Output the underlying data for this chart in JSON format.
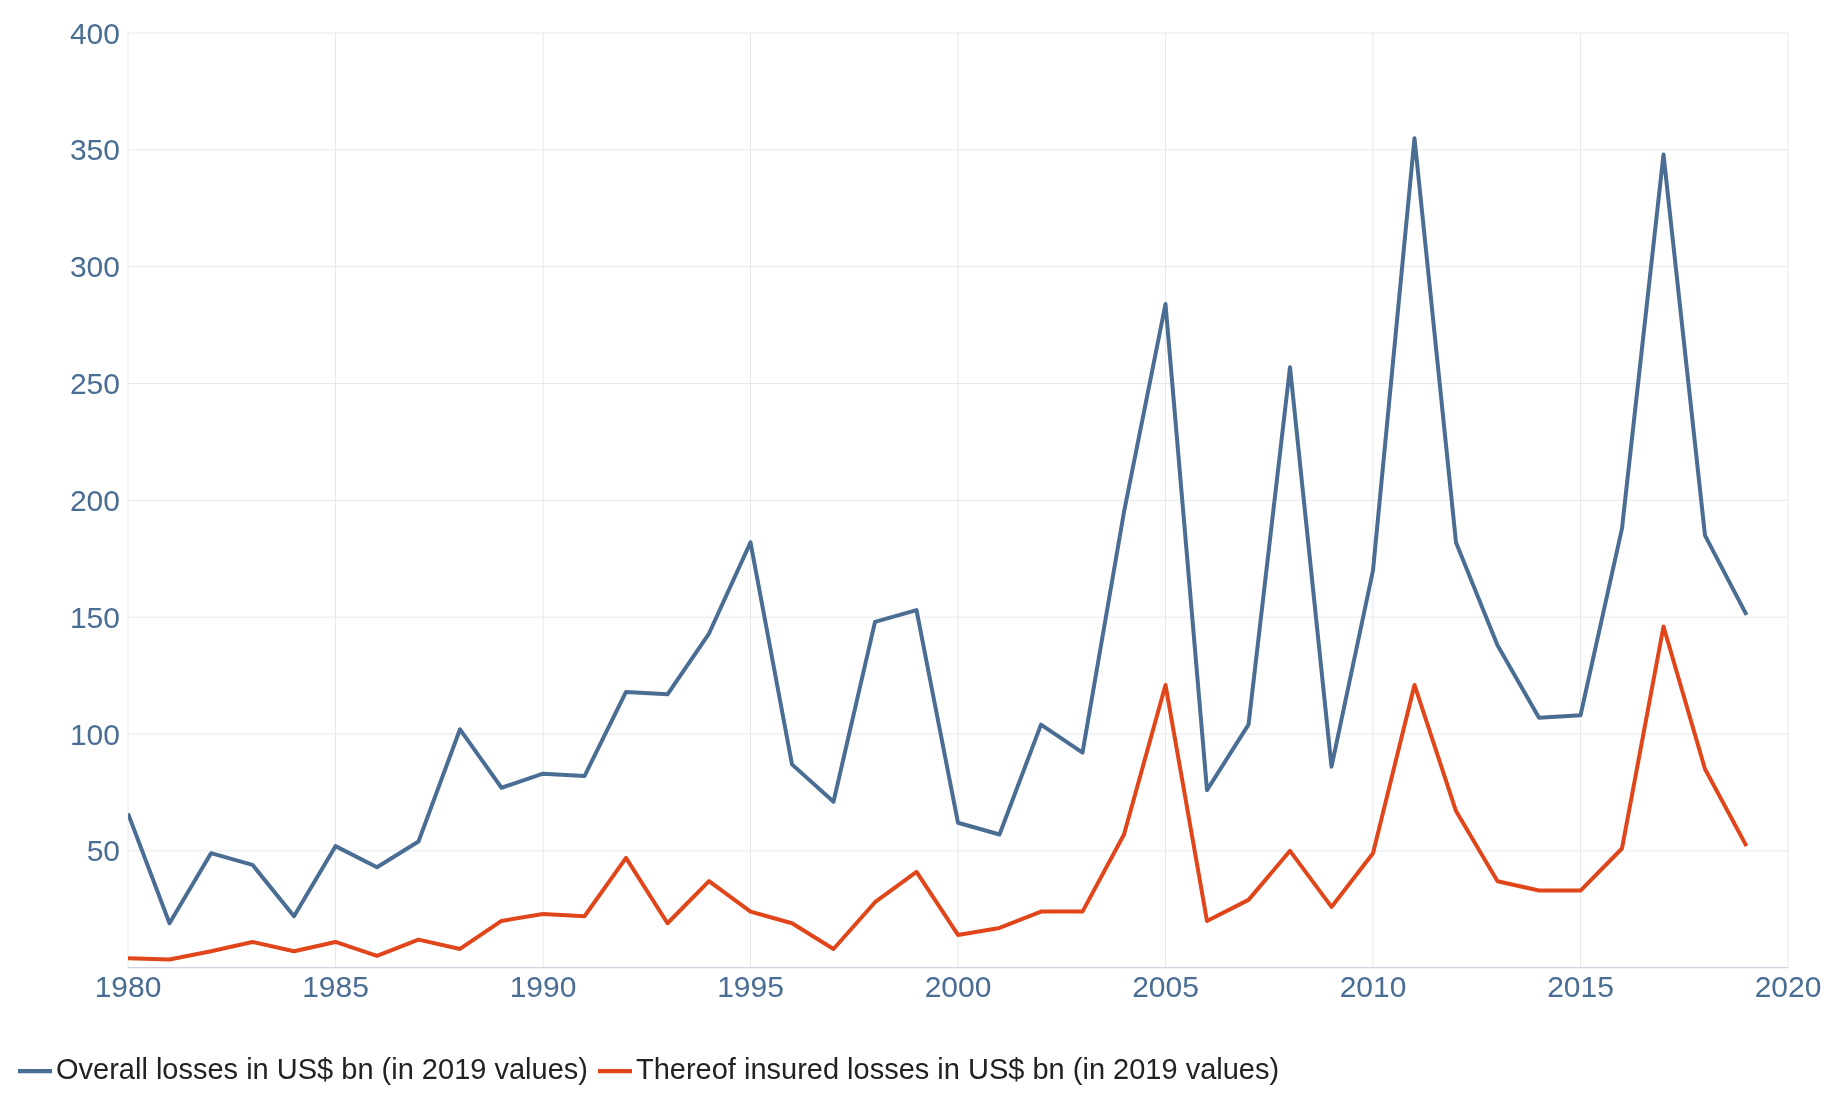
{
  "chart_data": {
    "type": "line",
    "x": [
      1980,
      1981,
      1982,
      1983,
      1984,
      1985,
      1986,
      1987,
      1988,
      1989,
      1990,
      1991,
      1992,
      1993,
      1994,
      1995,
      1996,
      1997,
      1998,
      1999,
      2000,
      2001,
      2002,
      2003,
      2004,
      2005,
      2006,
      2007,
      2008,
      2009,
      2010,
      2011,
      2012,
      2013,
      2014,
      2015,
      2016,
      2017,
      2018,
      2019
    ],
    "series": [
      {
        "name": "Overall losses in US$ bn (in 2019 values)",
        "color": "#4a6d94",
        "values": [
          66,
          19,
          49,
          44,
          22,
          52,
          43,
          54,
          102,
          77,
          83,
          82,
          118,
          117,
          143,
          182,
          87,
          71,
          148,
          153,
          62,
          57,
          104,
          92,
          195,
          284,
          76,
          104,
          257,
          86,
          170,
          355,
          182,
          138,
          107,
          108,
          188,
          348,
          185,
          151
        ]
      },
      {
        "name": "Thereof insured losses in US$ bn (in 2019 values)",
        "color": "#e0461a",
        "values": [
          4,
          3.5,
          7,
          11,
          7,
          11,
          5,
          12,
          8,
          20,
          23,
          22,
          47,
          19,
          37,
          24,
          19,
          8,
          28,
          41,
          14,
          17,
          24,
          24,
          57,
          121,
          20,
          29,
          50,
          26,
          49,
          121,
          67,
          37,
          33,
          33,
          51,
          146,
          85,
          52
        ]
      }
    ],
    "xlim": [
      1980,
      2020
    ],
    "xticks": [
      1980,
      1985,
      1990,
      1995,
      2000,
      2005,
      2010,
      2015,
      2020
    ],
    "ylim": [
      0,
      400
    ],
    "yticks": [
      50,
      100,
      150,
      200,
      250,
      300,
      350,
      400
    ],
    "grid": true,
    "legend": "bottom",
    "marker": "none",
    "line_style": "solid"
  }
}
